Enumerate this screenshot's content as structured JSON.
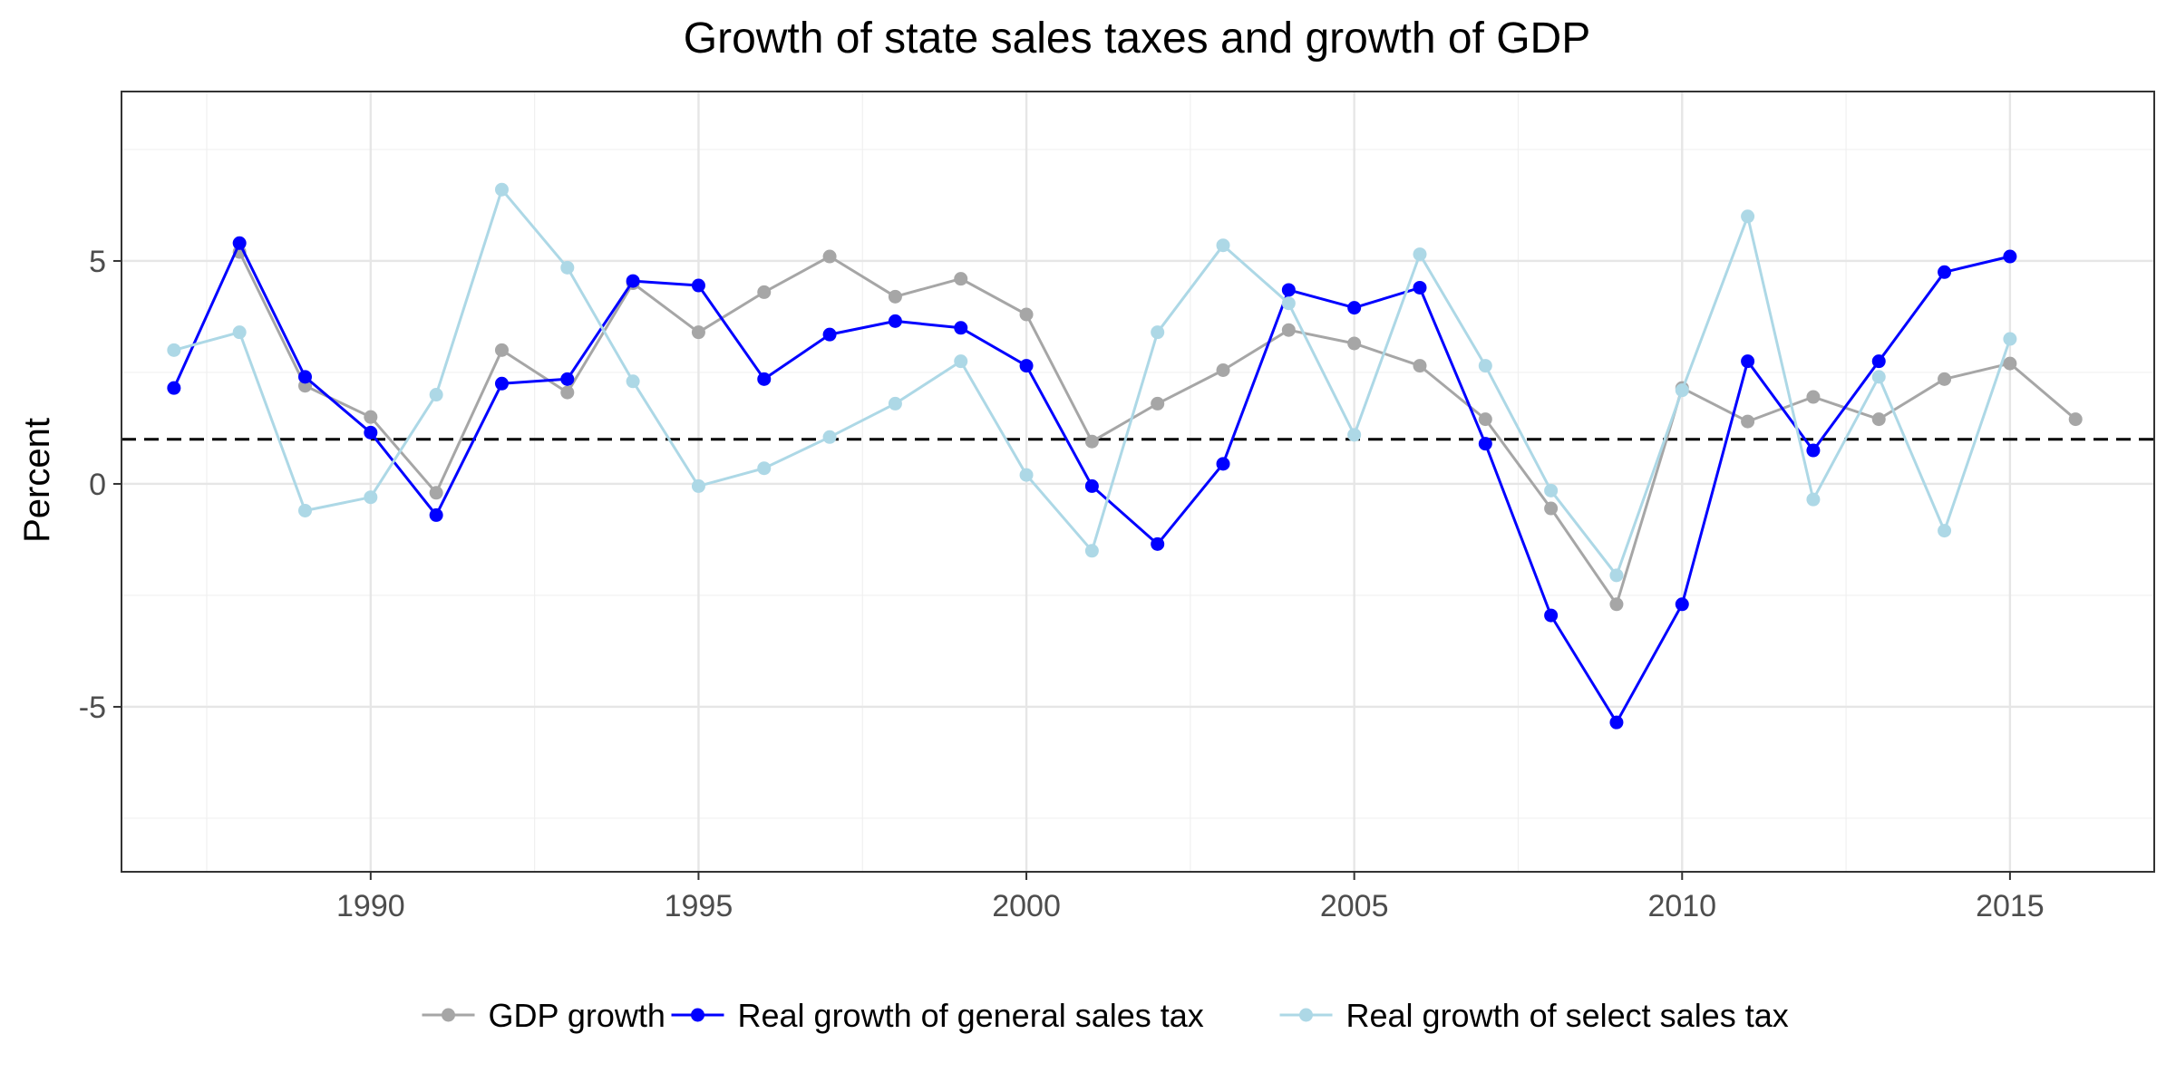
{
  "chart_data": {
    "type": "line",
    "title": "Growth of state sales taxes and growth of GDP",
    "xlabel": "",
    "ylabel": "Percent",
    "xlim": [
      1986.2,
      2017.2
    ],
    "ylim": [
      -8.7,
      8.8
    ],
    "x_ticks": [
      1990,
      1995,
      2000,
      2005,
      2010,
      2015
    ],
    "x_tick_labels": [
      "1990",
      "1995",
      "2000",
      "2005",
      "2010",
      "2015"
    ],
    "y_ticks": [
      -5,
      0,
      5
    ],
    "y_tick_labels": [
      "-5",
      "0",
      "5"
    ],
    "x_minor_ticks": [
      1987.5,
      1992.5,
      1997.5,
      2002.5,
      2007.5,
      2012.5
    ],
    "y_minor_ticks": [
      -7.5,
      -2.5,
      2.5,
      7.5
    ],
    "grid": true,
    "legend_position": "bottom",
    "reference_line": {
      "y": 1,
      "style": "dashed",
      "color": "#000000"
    },
    "x": [
      1987,
      1988,
      1989,
      1990,
      1991,
      1992,
      1993,
      1994,
      1995,
      1996,
      1997,
      1998,
      1999,
      2000,
      2001,
      2002,
      2003,
      2004,
      2005,
      2006,
      2007,
      2008,
      2009,
      2010,
      2011,
      2012,
      2013,
      2014,
      2015,
      2016
    ],
    "series": [
      {
        "name": "GDP growth",
        "color": "#a6a6a6",
        "values": [
          null,
          5.2,
          2.2,
          1.5,
          -0.2,
          3.0,
          2.05,
          4.5,
          3.4,
          4.3,
          5.1,
          4.2,
          4.6,
          3.8,
          0.95,
          1.8,
          2.55,
          3.45,
          3.15,
          2.65,
          1.45,
          -0.55,
          -2.7,
          2.15,
          1.4,
          1.95,
          1.45,
          2.35,
          2.7,
          1.45
        ]
      },
      {
        "name": "Real growth of general sales tax",
        "color": "#0000ff",
        "values": [
          2.15,
          5.4,
          2.4,
          1.15,
          -0.7,
          2.25,
          2.35,
          4.55,
          4.45,
          2.35,
          3.35,
          3.65,
          3.5,
          2.65,
          -0.05,
          -1.35,
          0.45,
          4.35,
          3.95,
          4.4,
          0.9,
          -2.95,
          -5.35,
          -2.7,
          2.75,
          0.75,
          2.75,
          4.75,
          5.1,
          null
        ]
      },
      {
        "name": "Real growth of select sales tax",
        "color": "#add8e6",
        "values": [
          3.0,
          3.4,
          -0.6,
          -0.3,
          2.0,
          6.6,
          4.85,
          2.3,
          -0.05,
          0.35,
          1.05,
          1.8,
          2.75,
          0.2,
          -1.5,
          3.4,
          5.35,
          4.05,
          1.1,
          5.15,
          2.65,
          -0.15,
          -2.05,
          2.1,
          6.0,
          -0.35,
          2.4,
          -1.05,
          3.25,
          null
        ]
      }
    ]
  }
}
